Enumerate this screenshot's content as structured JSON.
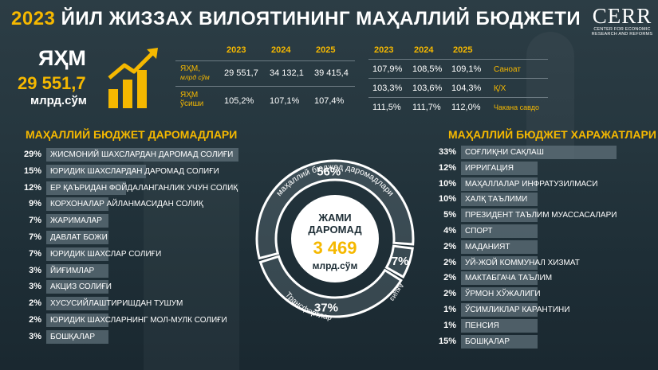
{
  "header": {
    "title_year": "2023",
    "title_rest": "ЙИЛ ЖИЗЗАХ ВИЛОЯТИНИНГ МАҲАЛЛИЙ БЮДЖЕТИ"
  },
  "logo": {
    "name": "CERR",
    "line1": "CENTER FOR ECONOMIC",
    "line2": "RESEARCH AND REFORMS"
  },
  "gdp": {
    "label": "ЯҲМ",
    "value": "29 551,7",
    "unit": "млрд.сўм"
  },
  "kpi_left": {
    "years": [
      "2023",
      "2024",
      "2025"
    ],
    "rows": [
      {
        "label1": "ЯҲМ,",
        "label2": "млрд сўм",
        "values": [
          "29 551,7",
          "34 132,1",
          "39 415,4"
        ]
      },
      {
        "label1": "ЯҲМ",
        "label2": "ўсиши",
        "values": [
          "105,2%",
          "107,1%",
          "107,4%"
        ]
      }
    ]
  },
  "kpi_right": {
    "years": [
      "2023",
      "2024",
      "2025"
    ],
    "rows": [
      {
        "values": [
          "107,9%",
          "108,5%",
          "109,1%"
        ],
        "label": "Саноат"
      },
      {
        "values": [
          "103,3%",
          "103,6%",
          "104,3%"
        ],
        "label": "Қ/Х"
      },
      {
        "values": [
          "111,5%",
          "111,7%",
          "112,0%"
        ],
        "label": "Чакана савдо"
      }
    ]
  },
  "revenues": {
    "title": "МАҲАЛЛИЙ БЮДЖЕТ ДАРОМАДЛАРИ",
    "items": [
      {
        "pct": "29%",
        "share": 29,
        "label": "ЖИСМОНИЙ ШАХСЛАРДАН ДАРОМАД СОЛИҒИ"
      },
      {
        "pct": "15%",
        "share": 15,
        "label": "ЮРИДИК ШАХСЛАРДАН ДАРОМАД СОЛИҒИ"
      },
      {
        "pct": "12%",
        "share": 12,
        "label": "ЕР ҚАЪРИДАН ФОЙДАЛАНГАНЛИК УЧУН СОЛИҚ"
      },
      {
        "pct": "9%",
        "share": 9,
        "label": "КОРХОНАЛАР АЙЛАНМАСИДАН СОЛИҚ"
      },
      {
        "pct": "7%",
        "share": 7,
        "label": "ЖАРИМАЛАР"
      },
      {
        "pct": "7%",
        "share": 7,
        "label": "ДАВЛАТ БОЖИ"
      },
      {
        "pct": "7%",
        "share": 7,
        "label": "ЮРИДИК ШАХСЛАР СОЛИҒИ"
      },
      {
        "pct": "3%",
        "share": 3,
        "label": "ЙИҒИМЛАР"
      },
      {
        "pct": "3%",
        "share": 3,
        "label": "АКЦИЗ СОЛИҒИ"
      },
      {
        "pct": "2%",
        "share": 2,
        "label": "ХУСУСИЙЛАШТИРИШДАН ТУШУМ"
      },
      {
        "pct": "2%",
        "share": 2,
        "label": "ЮРИДИК ШАХСЛАРНИНГ МОЛ-МУЛК СОЛИҒИ"
      },
      {
        "pct": "3%",
        "share": 3,
        "label": "БОШҚАЛАР"
      }
    ]
  },
  "expenditures": {
    "title": "МАҲАЛЛИЙ БЮДЖЕТ ХАРАЖАТЛАРИ",
    "items": [
      {
        "pct": "33%",
        "share": 33,
        "label": "СОҒЛИҚНИ САҚЛАШ"
      },
      {
        "pct": "12%",
        "share": 12,
        "label": "ИРРИГАЦИЯ"
      },
      {
        "pct": "10%",
        "share": 10,
        "label": "МАҲАЛЛАЛАР ИНФРАТУЗИЛМАСИ"
      },
      {
        "pct": "10%",
        "share": 10,
        "label": "ХАЛҚ ТАЪЛИМИ"
      },
      {
        "pct": "5%",
        "share": 5,
        "label": "ПРЕЗИДЕНТ ТАЪЛИМ МУАССАСАЛАРИ"
      },
      {
        "pct": "4%",
        "share": 4,
        "label": "СПОРТ"
      },
      {
        "pct": "2%",
        "share": 2,
        "label": "МАДАНИЯТ"
      },
      {
        "pct": "2%",
        "share": 2,
        "label": "УЙ-ЖОЙ КОММУНАЛ ХИЗМАТ"
      },
      {
        "pct": "2%",
        "share": 2,
        "label": "МАКТАБГАЧА ТАЪЛИМ"
      },
      {
        "pct": "2%",
        "share": 2,
        "label": "ЎРМОН ХЎЖАЛИГИ"
      },
      {
        "pct": "1%",
        "share": 1,
        "label": "ЎСИМЛИКЛАР КАРАНТИНИ"
      },
      {
        "pct": "1%",
        "share": 1,
        "label": "ПЕНСИЯ"
      },
      {
        "pct": "15%",
        "share": 15,
        "label": "БОШҚАЛАР"
      }
    ]
  },
  "donut": {
    "center_line1": "ЖАМИ",
    "center_line2": "ДАРОМАД",
    "center_value": "3 469",
    "center_unit": "млрд.сўм",
    "seg_labels": {
      "own": "маҳаллий бюджед даромадлари",
      "transfers": "Трансфертлар",
      "excise": "Акциз"
    }
  },
  "chart_data": {
    "type": "pie",
    "title": "ЖАМИ ДАРОМАД 3 469 млрд.сўм",
    "slices": [
      {
        "label": "маҳаллий бюджед даромадлари",
        "value": 56,
        "pct": "56%"
      },
      {
        "label": "Трансфертлар",
        "value": 37,
        "pct": "37%"
      },
      {
        "label": "Акциз",
        "value": 7,
        "pct": "7%"
      }
    ],
    "colors": {
      "accent": "#f5b800",
      "ring": "#ffffff",
      "center": "#ffffff"
    }
  }
}
